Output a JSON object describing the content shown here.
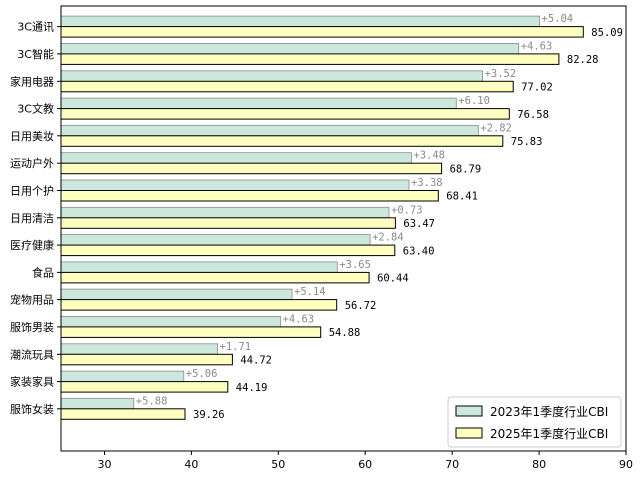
{
  "chart_data": {
    "type": "bar",
    "orientation": "horizontal",
    "categories": [
      "3C通讯",
      "3C智能",
      "家用电器",
      "3C文教",
      "日用美妆",
      "运动户外",
      "日用个护",
      "日用清洁",
      "医疗健康",
      "食品",
      "宠物用品",
      "服饰男装",
      "潮流玩具",
      "家装家具",
      "服饰女装"
    ],
    "series": [
      {
        "name": "2023年1季度行业CBI",
        "color": "#cce8dc",
        "values": [
          80.05,
          77.65,
          73.5,
          70.48,
          73.01,
          65.31,
          65.03,
          62.74,
          60.56,
          56.79,
          51.58,
          50.25,
          43.01,
          39.13,
          33.38
        ]
      },
      {
        "name": "2025年1季度行业CBI",
        "color": "#ffffc0",
        "values": [
          85.09,
          82.28,
          77.02,
          76.58,
          75.83,
          68.79,
          68.41,
          63.47,
          63.4,
          60.44,
          56.72,
          54.88,
          44.72,
          44.19,
          39.26
        ]
      }
    ],
    "value_labels": [
      "85.09",
      "82.28",
      "77.02",
      "76.58",
      "75.83",
      "68.79",
      "68.41",
      "63.47",
      "63.40",
      "60.44",
      "56.72",
      "54.88",
      "44.72",
      "44.19",
      "39.26"
    ],
    "diff_labels": [
      "+5.04",
      "+4.63",
      "+3.52",
      "+6.10",
      "+2.82",
      "+3.48",
      "+3.38",
      "+0.73",
      "+2.84",
      "+3.65",
      "+5.14",
      "+4.63",
      "+1.71",
      "+5.06",
      "+5.88"
    ],
    "xlim": [
      25,
      90
    ],
    "xticks": [
      "30",
      "40",
      "50",
      "60",
      "70",
      "80",
      "90"
    ],
    "grid": false,
    "legend_position": "bottom-right"
  }
}
